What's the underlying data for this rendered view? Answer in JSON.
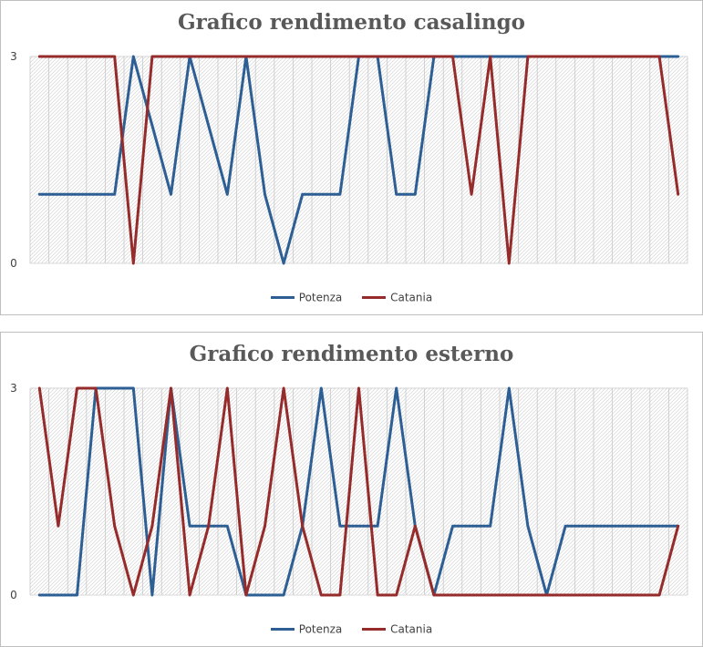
{
  "colors": {
    "potenza": "#2e5f94",
    "catania": "#962b2b",
    "grid": "#c8c8c8",
    "axis": "#d9d9d9",
    "title": "#595959"
  },
  "chart_data": [
    {
      "type": "line",
      "title": "Grafico rendimento casalingo",
      "xlabel": "",
      "ylabel": "",
      "ylim": [
        0,
        3
      ],
      "yticks": [
        "0",
        "3"
      ],
      "legend": "bottom",
      "grid": true,
      "x": [
        1,
        2,
        3,
        4,
        5,
        6,
        7,
        8,
        9,
        10,
        11,
        12,
        13,
        14,
        15,
        16,
        17,
        18,
        19,
        20,
        21,
        22,
        23,
        24,
        25,
        26,
        27,
        28,
        29,
        30,
        31,
        32,
        33,
        34,
        35
      ],
      "series": [
        {
          "name": "Potenza",
          "color": "#2e5f94",
          "values": [
            1,
            1,
            1,
            1,
            1,
            3,
            2,
            1,
            3,
            2,
            1,
            3,
            1,
            0,
            1,
            1,
            1,
            3,
            3,
            1,
            1,
            3,
            3,
            3,
            3,
            3,
            3,
            3,
            3,
            3,
            3,
            3,
            3,
            3,
            3
          ]
        },
        {
          "name": "Catania",
          "color": "#962b2b",
          "values": [
            3,
            3,
            3,
            3,
            3,
            0,
            3,
            3,
            3,
            3,
            3,
            3,
            3,
            3,
            3,
            3,
            3,
            3,
            3,
            3,
            3,
            3,
            3,
            1,
            3,
            0,
            3,
            3,
            3,
            3,
            3,
            3,
            3,
            3,
            1
          ]
        }
      ]
    },
    {
      "type": "line",
      "title": "Grafico rendimento esterno",
      "xlabel": "",
      "ylabel": "",
      "ylim": [
        0,
        3
      ],
      "yticks": [
        "0",
        "3"
      ],
      "legend": "bottom",
      "grid": true,
      "x": [
        1,
        2,
        3,
        4,
        5,
        6,
        7,
        8,
        9,
        10,
        11,
        12,
        13,
        14,
        15,
        16,
        17,
        18,
        19,
        20,
        21,
        22,
        23,
        24,
        25,
        26,
        27,
        28,
        29,
        30,
        31,
        32,
        33,
        34,
        35
      ],
      "series": [
        {
          "name": "Potenza",
          "color": "#2e5f94",
          "values": [
            0,
            0,
            0,
            3,
            3,
            3,
            0,
            3,
            1,
            1,
            1,
            0,
            0,
            0,
            1,
            3,
            1,
            1,
            1,
            3,
            1,
            0,
            1,
            1,
            1,
            3,
            1,
            0,
            1,
            1,
            1,
            1,
            1,
            1,
            1
          ]
        },
        {
          "name": "Catania",
          "color": "#962b2b",
          "values": [
            3,
            1,
            3,
            3,
            1,
            0,
            1,
            3,
            0,
            1,
            3,
            0,
            1,
            3,
            1,
            0,
            0,
            3,
            0,
            0,
            1,
            0,
            0,
            0,
            0,
            0,
            0,
            0,
            0,
            0,
            0,
            0,
            0,
            0,
            1
          ]
        }
      ]
    }
  ]
}
